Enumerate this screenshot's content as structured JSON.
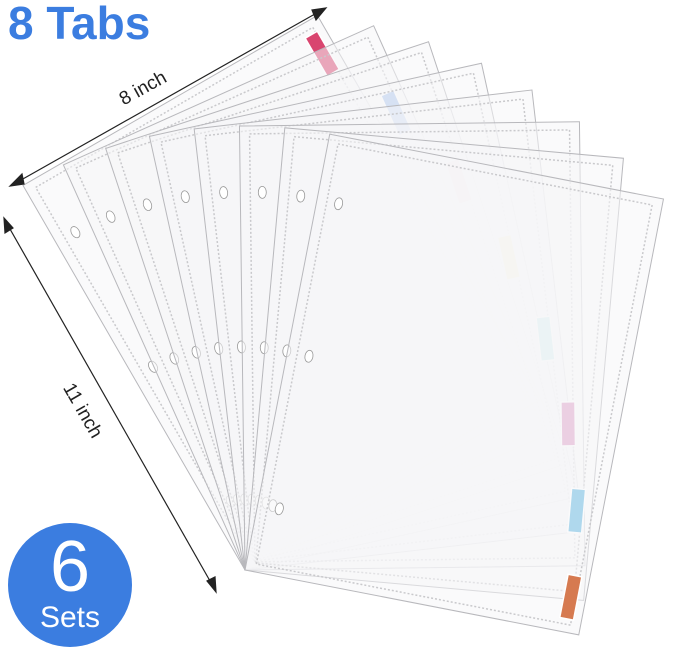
{
  "title": "8 Tabs",
  "width_label": "8 inch",
  "height_label": "11 inch",
  "badge": {
    "number": "6",
    "label": "Sets",
    "color": "#3b7de0"
  },
  "tab_colors": [
    "#d9456f",
    "#5b8fe0",
    "#f08a8a",
    "#f0d27a",
    "#7ed8dc",
    "#c0388f",
    "#5ab3e0",
    "#d67a50"
  ]
}
